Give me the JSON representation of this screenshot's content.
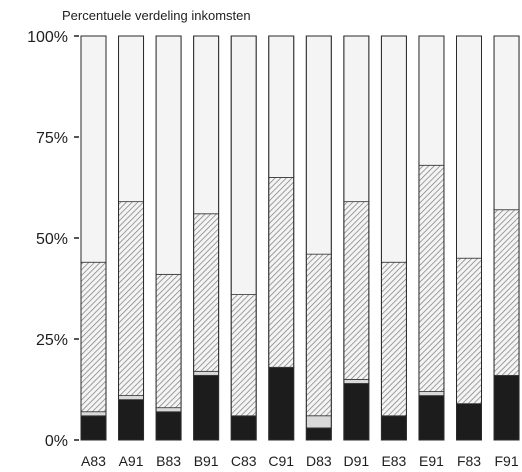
{
  "chart_data": {
    "type": "bar",
    "stacked": true,
    "title": "Percentuele verdeling inkomsten",
    "xlabel": "",
    "ylabel": "",
    "ylim": [
      0,
      100
    ],
    "y_ticks": [
      "0%",
      "25%",
      "50%",
      "75%",
      "100%"
    ],
    "y_tick_values": [
      0,
      25,
      50,
      75,
      100
    ],
    "grid": false,
    "legend": "none",
    "categories": [
      "A83",
      "A91",
      "B83",
      "B91",
      "C83",
      "C91",
      "D83",
      "D91",
      "E83",
      "E91",
      "F83",
      "F91"
    ],
    "series": [
      {
        "values": [
          6,
          10,
          7,
          16,
          6,
          18,
          3,
          14,
          6,
          11,
          9,
          16
        ],
        "color": "#1c1c1c",
        "fill": "solid"
      },
      {
        "values": [
          1,
          1,
          1,
          1,
          0,
          0,
          3,
          1,
          0,
          1,
          0,
          0
        ],
        "color": "#d6d6d6",
        "fill": "light"
      },
      {
        "values": [
          37,
          48,
          33,
          39,
          30,
          47,
          40,
          44,
          38,
          56,
          36,
          41
        ],
        "color": "#8e8e8e",
        "fill": "hatched"
      },
      {
        "values": [
          56,
          41,
          59,
          44,
          64,
          35,
          54,
          41,
          56,
          32,
          55,
          43
        ],
        "color": "#f2f2f2",
        "fill": "blank"
      }
    ]
  }
}
